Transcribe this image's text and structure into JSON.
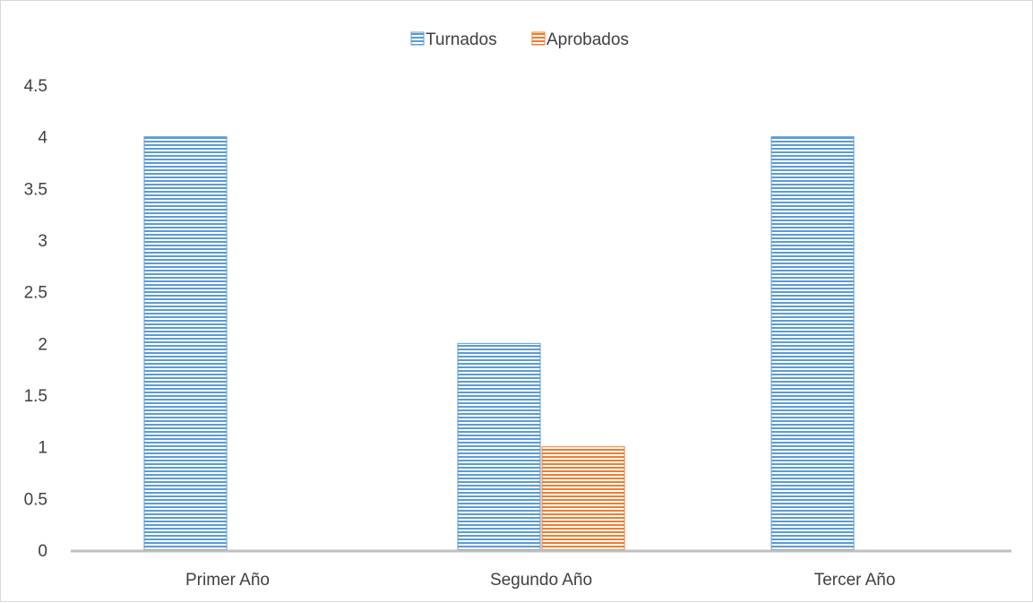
{
  "chart_data": {
    "type": "bar",
    "title": "",
    "xlabel": "",
    "ylabel": "",
    "categories": [
      "Primer Año",
      "Segundo Año",
      "Tercer Año"
    ],
    "series": [
      {
        "name": "Turnados",
        "values": [
          4,
          2,
          4
        ],
        "color": "#5b9bd5"
      },
      {
        "name": "Aprobados",
        "values": [
          0,
          1,
          0
        ],
        "color": "#ed7d31"
      }
    ],
    "yticks": [
      "0",
      "0.5",
      "1",
      "1.5",
      "2",
      "2.5",
      "3",
      "3.5",
      "4",
      "4.5"
    ],
    "ylim": [
      0,
      4.5
    ],
    "grid": false,
    "legend_position": "top-center",
    "bar_fill": "horizontal-stripes"
  }
}
